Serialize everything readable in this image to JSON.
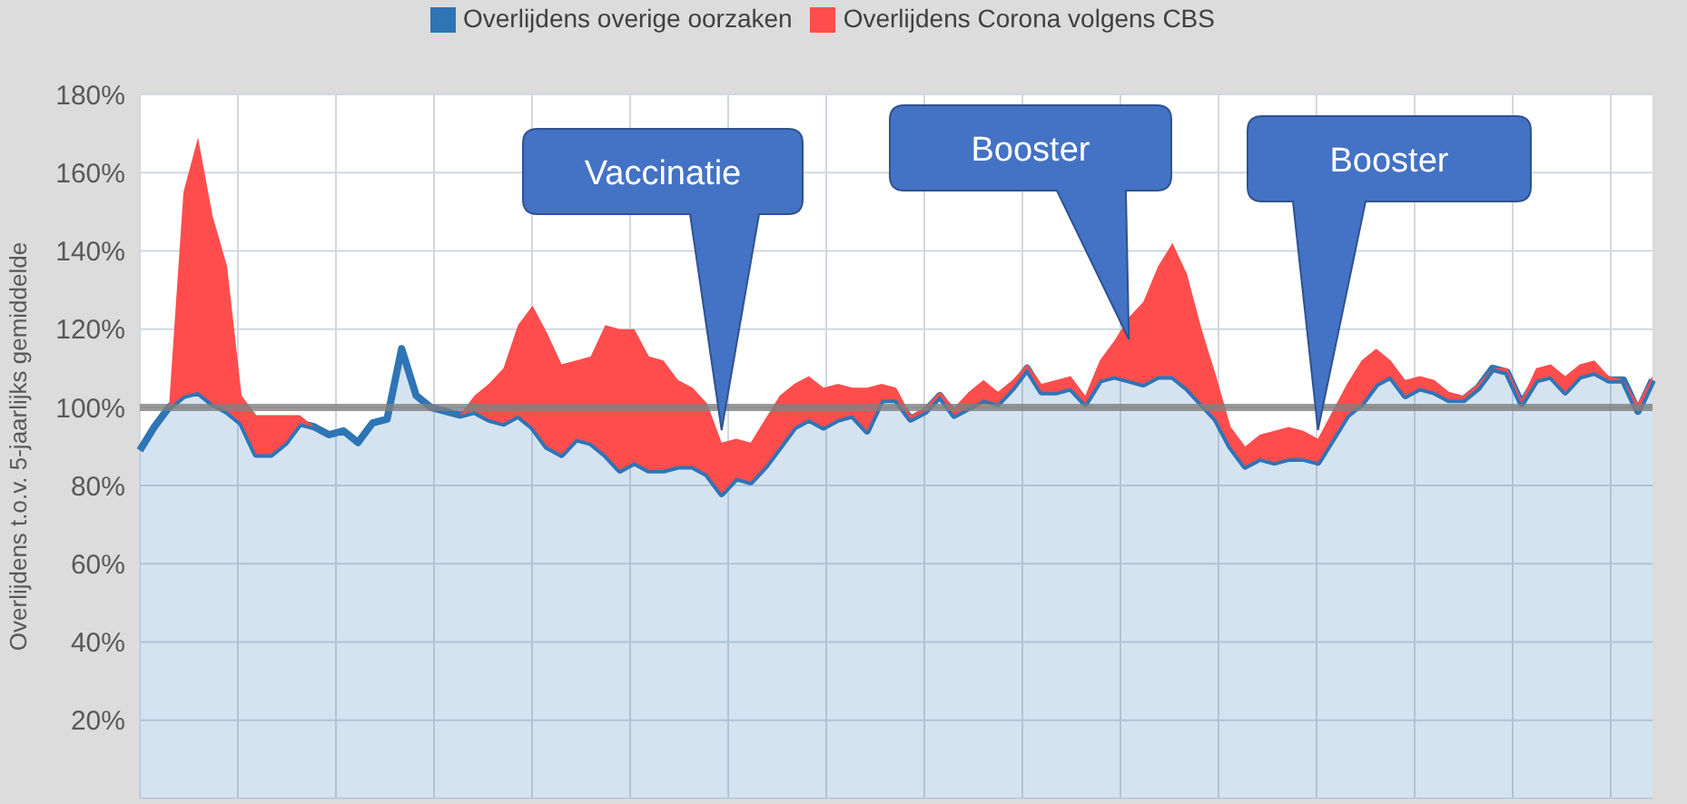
{
  "chart_data": {
    "type": "area",
    "stacked": true,
    "ylabel": "Overlijdens t.o.v. 5-jaarlijks gemiddelde",
    "categories": [
      null,
      null,
      null,
      null,
      null,
      null,
      null,
      null,
      null,
      null,
      null,
      null,
      null,
      null,
      null,
      null,
      null,
      null,
      null,
      null,
      null,
      null,
      null,
      null,
      null,
      null,
      null,
      null,
      null,
      null,
      null,
      null,
      null,
      null,
      null,
      null,
      null,
      null,
      null,
      null,
      null,
      null,
      null,
      null,
      null,
      null,
      null,
      null,
      null,
      null,
      null,
      null,
      null,
      null,
      null,
      null,
      null,
      null,
      null,
      null,
      null,
      null,
      null,
      null,
      null,
      null,
      null,
      null,
      null,
      null,
      null,
      null,
      null,
      null,
      null,
      null,
      null,
      null,
      null,
      null,
      null,
      null,
      null,
      null,
      null,
      null,
      null,
      null,
      null,
      null,
      null,
      null,
      null,
      null,
      null,
      null,
      null,
      null,
      null,
      null,
      null,
      null,
      null,
      null,
      null
    ],
    "series": [
      {
        "name": "Overlijdens overige oorzaken",
        "color": "#2e75b6",
        "values": [
          89,
          95,
          100,
          103,
          104,
          101,
          99,
          96,
          88,
          88,
          91,
          96,
          95,
          93,
          94,
          91,
          96,
          97,
          115,
          103,
          100,
          99,
          98,
          99,
          97,
          96,
          98,
          95,
          90,
          88,
          92,
          91,
          88,
          84,
          86,
          84,
          84,
          85,
          85,
          83,
          78,
          82,
          81,
          85,
          90,
          95,
          97,
          95,
          97,
          98,
          94,
          102,
          102,
          97,
          99,
          103,
          98,
          100,
          102,
          101,
          105,
          110,
          104,
          104,
          105,
          101,
          107,
          108,
          107,
          106,
          108,
          108,
          105,
          101,
          97,
          90,
          85,
          87,
          86,
          87,
          87,
          86,
          92,
          98,
          101,
          106,
          108,
          103,
          105,
          104,
          102,
          102,
          105,
          110,
          109,
          101,
          107,
          108,
          104,
          108,
          109,
          107,
          107,
          99,
          107
        ]
      },
      {
        "name": "Overlijdens Corona volgens CBS",
        "color": "#ff4d4d",
        "values": [
          0,
          0,
          0,
          52,
          65,
          48,
          37,
          7,
          10,
          10,
          7,
          2,
          0,
          0,
          0,
          0,
          0,
          0,
          0,
          0,
          0,
          0,
          0,
          4,
          9,
          14,
          23,
          31,
          29,
          23,
          20,
          22,
          33,
          36,
          34,
          29,
          28,
          22,
          20,
          18,
          13,
          10,
          10,
          12,
          13,
          11,
          11,
          10,
          9,
          7,
          11,
          4,
          3,
          1,
          1,
          1,
          2,
          4,
          5,
          3,
          2,
          1,
          2,
          3,
          3,
          2,
          5,
          9,
          16,
          21,
          28,
          34,
          29,
          19,
          11,
          5,
          5,
          6,
          8,
          8,
          7,
          6,
          7,
          8,
          11,
          9,
          4,
          4,
          3,
          3,
          2,
          1,
          1,
          0,
          1,
          1,
          3,
          3,
          4,
          3,
          3,
          1,
          0,
          2,
          1
        ]
      }
    ],
    "ylim": [
      0,
      180
    ],
    "yticks": [
      {
        "value": 20,
        "label": "20%"
      },
      {
        "value": 40,
        "label": "40%"
      },
      {
        "value": 60,
        "label": "60%"
      },
      {
        "value": 80,
        "label": "80%"
      },
      {
        "value": 100,
        "label": "100%"
      },
      {
        "value": 120,
        "label": "120%"
      },
      {
        "value": 140,
        "label": "140%"
      },
      {
        "value": 160,
        "label": "160%"
      },
      {
        "value": 180,
        "label": "180%"
      }
    ],
    "ref_lines": [
      {
        "axis": "y",
        "value": 100,
        "color": "#808080"
      }
    ],
    "annotations": [
      "Vaccinatie",
      "Booster",
      "Booster"
    ],
    "grid": true,
    "legend": "top",
    "tick_labels": "y"
  }
}
